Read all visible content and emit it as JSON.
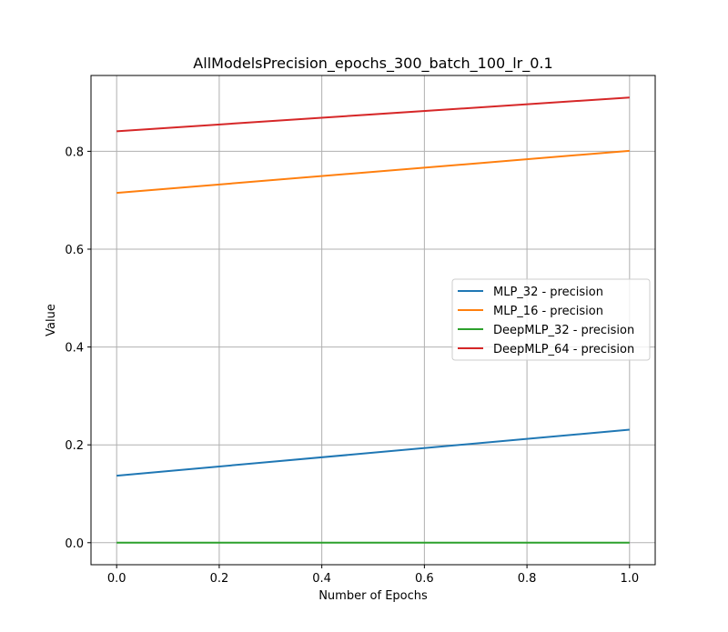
{
  "chart_data": {
    "type": "line",
    "title": "AllModelsPrecision_epochs_300_batch_100_lr_0.1",
    "xlabel": "Number of Epochs",
    "ylabel": "Value",
    "x": [
      0,
      1
    ],
    "xlim": [
      -0.05,
      1.05
    ],
    "ylim": [
      -0.045,
      0.955
    ],
    "xticks": [
      "0.0",
      "0.2",
      "0.4",
      "0.6",
      "0.8",
      "1.0"
    ],
    "yticks": [
      "0.0",
      "0.2",
      "0.4",
      "0.6",
      "0.8"
    ],
    "grid": true,
    "legend_position": "center-right",
    "series": [
      {
        "name": "MLP_32 - precision",
        "values": [
          0.137,
          0.231
        ],
        "color": "#1f77b4"
      },
      {
        "name": "MLP_16 - precision",
        "values": [
          0.715,
          0.801
        ],
        "color": "#ff7f0e"
      },
      {
        "name": "DeepMLP_32 - precision",
        "values": [
          0.0,
          0.0
        ],
        "color": "#2ca02c"
      },
      {
        "name": "DeepMLP_64 - precision",
        "values": [
          0.841,
          0.91
        ],
        "color": "#d62728"
      }
    ]
  }
}
